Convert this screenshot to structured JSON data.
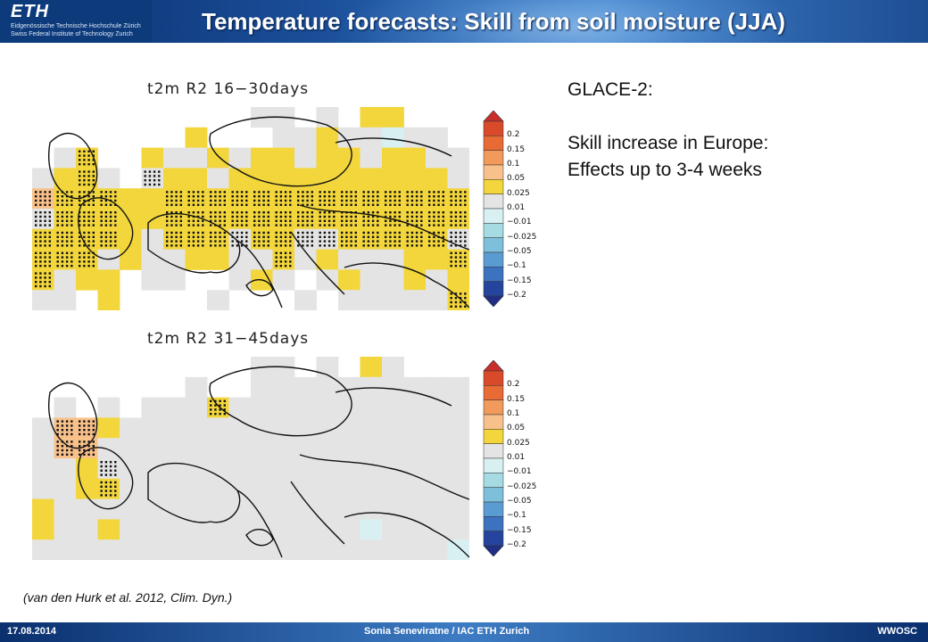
{
  "header": {
    "logo_text": "ETH",
    "logo_line1": "Eidgenössische Technische Hochschule Zürich",
    "logo_line2": "Swiss Federal Institute of Technology Zurich",
    "title": "Temperature forecasts: Skill from soil moisture (JJA)"
  },
  "maps": [
    {
      "label": "t2m R2   16−30days"
    },
    {
      "label": "t2m R2   31−45days"
    }
  ],
  "colorbar": {
    "ticks": [
      "0.2",
      "0.15",
      "0.1",
      "0.05",
      "0.025",
      "0.01",
      "−0.01",
      "−0.025",
      "−0.05",
      "−0.1",
      "−0.15",
      "−0.2"
    ],
    "colors": [
      "#d94a2b",
      "#e86a34",
      "#f29a5c",
      "#f8c08a",
      "#f2d63c",
      "#e4e4e4",
      "#d8f0f2",
      "#a6dbe3",
      "#7ec0dc",
      "#5a9bd2",
      "#3d72c0",
      "#24449e"
    ],
    "top_color": "#c9302c",
    "bottom_color": "#1f2f85"
  },
  "side": {
    "line1": "GLACE-2:",
    "line2": "Skill increase in Europe:",
    "line3": "Effects up to 3-4 weeks"
  },
  "citation": "(van den Hurk et al. 2012, Clim. Dyn.)",
  "footer": {
    "date": "17.08.2014",
    "author": "Sonia Seneviratne / IAC ETH Zurich",
    "event": "WWOSC"
  }
}
